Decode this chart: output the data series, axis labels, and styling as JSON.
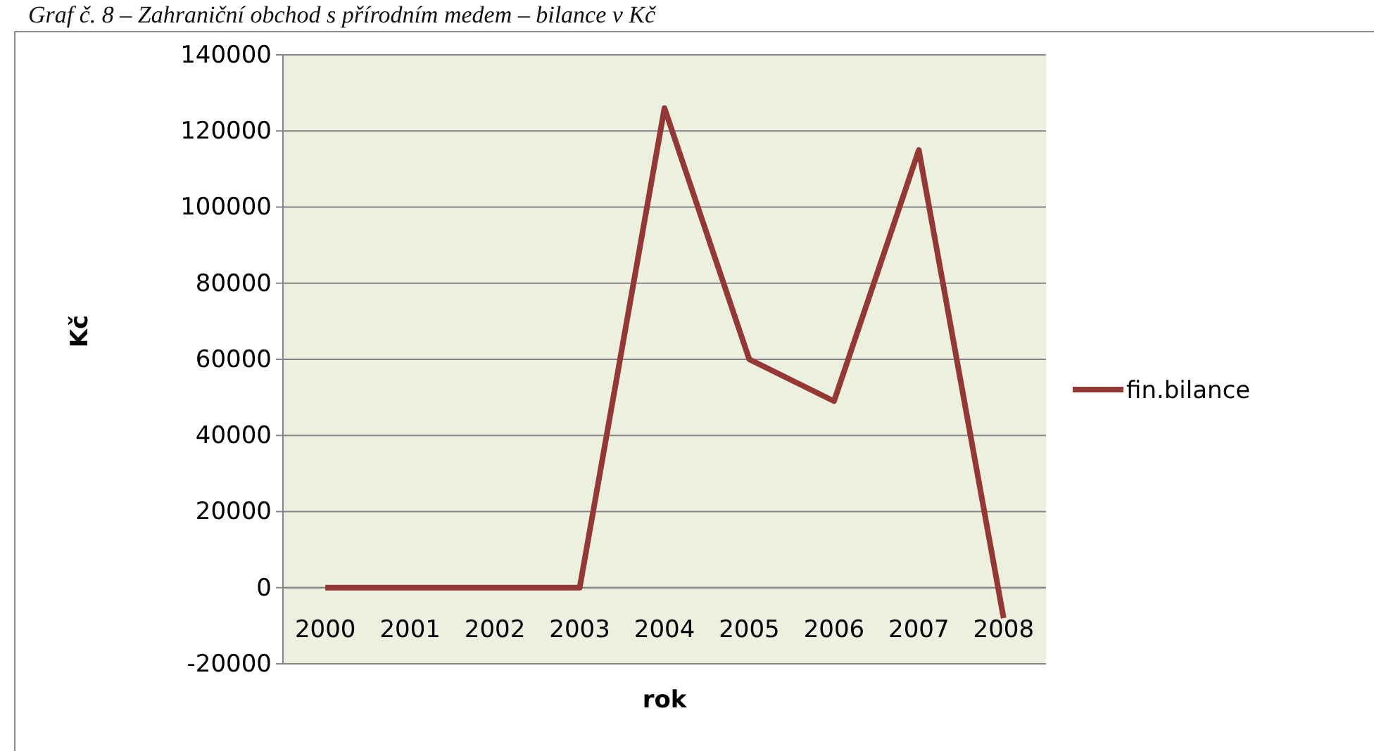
{
  "chart_data": {
    "type": "line",
    "title": "Graf č. 8 – Zahraniční obchod s přírodním medem – bilance v Kč",
    "xlabel": "rok",
    "ylabel": "Kč",
    "categories": [
      "2000",
      "2001",
      "2002",
      "2003",
      "2004",
      "2005",
      "2006",
      "2007",
      "2008"
    ],
    "series": [
      {
        "name": "fin.bilance",
        "color": "#953735",
        "values": [
          0,
          0,
          0,
          0,
          126000,
          60000,
          49000,
          115000,
          -8000
        ]
      }
    ],
    "ylim": [
      -20000,
      140000
    ],
    "yticks": [
      -20000,
      0,
      20000,
      40000,
      60000,
      80000,
      100000,
      120000,
      140000
    ],
    "grid": "y",
    "legend": "right",
    "marker": "none",
    "line_style": "solid"
  }
}
